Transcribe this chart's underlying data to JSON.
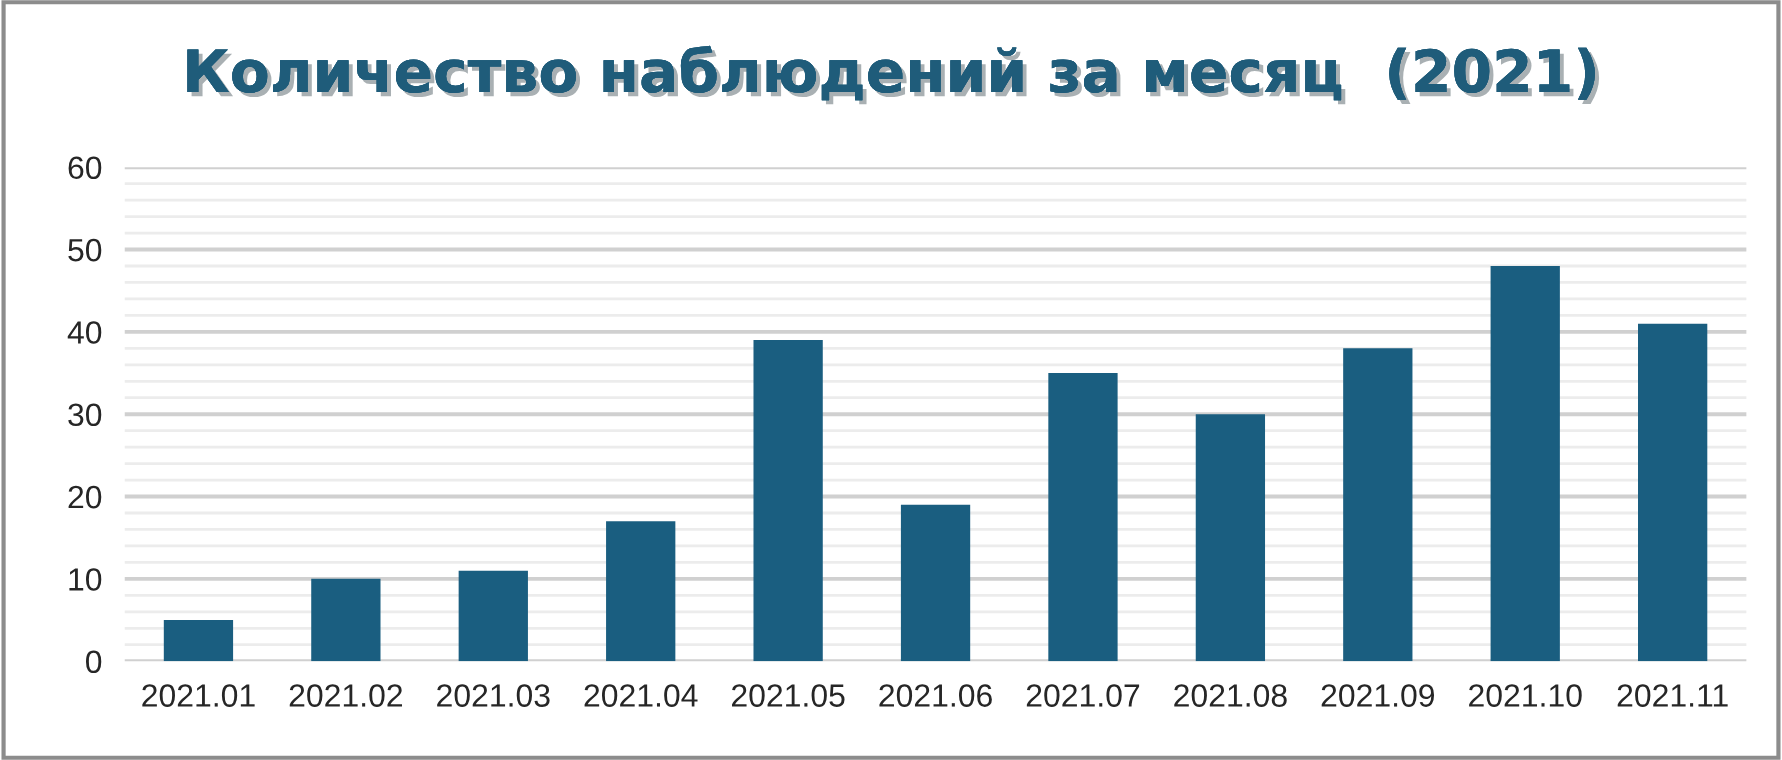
{
  "chart_data": {
    "type": "bar",
    "title": "Количество наблюдений за месяц  (2021)",
    "categories": [
      "2021.01",
      "2021.02",
      "2021.03",
      "2021.04",
      "2021.05",
      "2021.06",
      "2021.07",
      "2021.08",
      "2021.09",
      "2021.10",
      "2021.11"
    ],
    "values": [
      5,
      10,
      11,
      17,
      39,
      19,
      35,
      30,
      38,
      48,
      41
    ],
    "color": "#1a5e80",
    "ylim": [
      0,
      60
    ],
    "yticks": [
      0,
      10,
      20,
      30,
      40,
      50,
      60
    ],
    "grid": "y"
  }
}
